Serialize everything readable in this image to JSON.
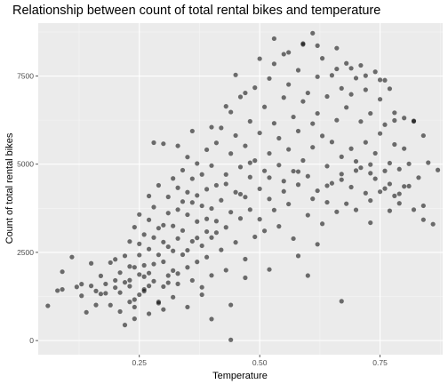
{
  "chart_data": {
    "type": "scatter",
    "title": "Relationship between count of total rental bikes and temperature",
    "xlabel": "Temperature",
    "ylabel": "Count of total rental bikes",
    "xlim": [
      0.04,
      0.88
    ],
    "ylim": [
      -400,
      9000
    ],
    "xticks": [
      0.25,
      0.5,
      0.75
    ],
    "xtick_labels": [
      "0.25",
      "0.50",
      "0.75"
    ],
    "yticks": [
      0,
      2500,
      5000,
      7500
    ],
    "ytick_labels": [
      "0",
      "2500",
      "5000",
      "7500"
    ],
    "grid": true,
    "legend": "none",
    "point_color": "#000000",
    "point_opacity": 0.55,
    "panel_background": "#ebebeb",
    "series": [
      {
        "points": [
          [
            0.06,
            985
          ],
          [
            0.08,
            1416
          ],
          [
            0.09,
            1951
          ],
          [
            0.09,
            1450
          ],
          [
            0.11,
            2368
          ],
          [
            0.12,
            1521
          ],
          [
            0.13,
            1600
          ],
          [
            0.13,
            1270
          ],
          [
            0.14,
            801
          ],
          [
            0.15,
            1550
          ],
          [
            0.15,
            2190
          ],
          [
            0.16,
            1405
          ],
          [
            0.16,
            1008
          ],
          [
            0.17,
            1321
          ],
          [
            0.17,
            1834
          ],
          [
            0.18,
            1341
          ],
          [
            0.18,
            1605
          ],
          [
            0.19,
            2210
          ],
          [
            0.19,
            1005
          ],
          [
            0.2,
            1501
          ],
          [
            0.2,
            1706
          ],
          [
            0.2,
            2302
          ],
          [
            0.21,
            822
          ],
          [
            0.21,
            1927
          ],
          [
            0.21,
            1360
          ],
          [
            0.22,
            2402
          ],
          [
            0.22,
            1650
          ],
          [
            0.22,
            441
          ],
          [
            0.23,
            1096
          ],
          [
            0.23,
            2101
          ],
          [
            0.23,
            2808
          ],
          [
            0.23,
            1540
          ],
          [
            0.24,
            2077
          ],
          [
            0.24,
            1162
          ],
          [
            0.24,
            3214
          ],
          [
            0.24,
            618
          ],
          [
            0.25,
            2424
          ],
          [
            0.25,
            1872
          ],
          [
            0.25,
            3574
          ],
          [
            0.25,
            2741
          ],
          [
            0.26,
            2133
          ],
          [
            0.26,
            1450
          ],
          [
            0.26,
            3005
          ],
          [
            0.26,
            1811
          ],
          [
            0.27,
            2594
          ],
          [
            0.27,
            1913
          ],
          [
            0.27,
            3422
          ],
          [
            0.27,
            4098
          ],
          [
            0.28,
            2169
          ],
          [
            0.28,
            1683
          ],
          [
            0.28,
            3784
          ],
          [
            0.28,
            2920
          ],
          [
            0.29,
            2431
          ],
          [
            0.29,
            3187
          ],
          [
            0.29,
            1096
          ],
          [
            0.29,
            4401
          ],
          [
            0.3,
            2792
          ],
          [
            0.3,
            1530
          ],
          [
            0.3,
            3272
          ],
          [
            0.3,
            2233
          ],
          [
            0.31,
            3614
          ],
          [
            0.31,
            2660
          ],
          [
            0.31,
            4073
          ],
          [
            0.31,
            1842
          ],
          [
            0.32,
            3249
          ],
          [
            0.32,
            2542
          ],
          [
            0.32,
            4596
          ],
          [
            0.32,
            1985
          ],
          [
            0.33,
            3713
          ],
          [
            0.33,
            2894
          ],
          [
            0.33,
            4332
          ],
          [
            0.33,
            1607
          ],
          [
            0.34,
            3940
          ],
          [
            0.34,
            2435
          ],
          [
            0.34,
            4830
          ],
          [
            0.34,
            3120
          ],
          [
            0.35,
            2076
          ],
          [
            0.35,
            4206
          ],
          [
            0.35,
            3567
          ],
          [
            0.35,
            5202
          ],
          [
            0.36,
            2814
          ],
          [
            0.36,
            3915
          ],
          [
            0.36,
            1706
          ],
          [
            0.36,
            4588
          ],
          [
            0.37,
            3374
          ],
          [
            0.37,
            2230
          ],
          [
            0.37,
            5020
          ],
          [
            0.37,
            4115
          ],
          [
            0.38,
            2688
          ],
          [
            0.38,
            3820
          ],
          [
            0.38,
            1510
          ],
          [
            0.38,
            4710
          ],
          [
            0.39,
            3089
          ],
          [
            0.39,
            5410
          ],
          [
            0.39,
            2365
          ],
          [
            0.39,
            4290
          ],
          [
            0.4,
            3744
          ],
          [
            0.4,
            1848
          ],
          [
            0.4,
            4960
          ],
          [
            0.4,
            2920
          ],
          [
            0.41,
            3386
          ],
          [
            0.41,
            5605
          ],
          [
            0.41,
            4402
          ],
          [
            0.42,
            2570
          ],
          [
            0.42,
            3978
          ],
          [
            0.42,
            6030
          ],
          [
            0.43,
            3210
          ],
          [
            0.43,
            4708
          ],
          [
            0.43,
            1995
          ],
          [
            0.44,
            5302
          ],
          [
            0.44,
            3640
          ],
          [
            0.44,
            6478
          ],
          [
            0.45,
            2784
          ],
          [
            0.45,
            4205
          ],
          [
            0.45,
            5814
          ],
          [
            0.46,
            3462
          ],
          [
            0.46,
            4920
          ],
          [
            0.46,
            6908
          ],
          [
            0.47,
            2309
          ],
          [
            0.47,
            4068
          ],
          [
            0.47,
            5520
          ],
          [
            0.48,
            3712
          ],
          [
            0.48,
            6215
          ],
          [
            0.48,
            4634
          ],
          [
            0.49,
            2940
          ],
          [
            0.49,
            5103
          ],
          [
            0.49,
            7170
          ],
          [
            0.5,
            4302
          ],
          [
            0.5,
            3440
          ],
          [
            0.5,
            5886
          ],
          [
            0.51,
            6624
          ],
          [
            0.51,
            4812
          ],
          [
            0.51,
            3110
          ],
          [
            0.52,
            7430
          ],
          [
            0.52,
            5307
          ],
          [
            0.52,
            4015
          ],
          [
            0.53,
            6160
          ],
          [
            0.53,
            3700
          ],
          [
            0.53,
            7846
          ],
          [
            0.54,
            4975
          ],
          [
            0.54,
            5736
          ],
          [
            0.54,
            3238
          ],
          [
            0.55,
            6890
          ],
          [
            0.55,
            4520
          ],
          [
            0.55,
            8120
          ],
          [
            0.56,
            5420
          ],
          [
            0.56,
            3870
          ],
          [
            0.56,
            7260
          ],
          [
            0.57,
            4802
          ],
          [
            0.57,
            6340
          ],
          [
            0.57,
            2890
          ],
          [
            0.58,
            5940
          ],
          [
            0.58,
            7664
          ],
          [
            0.58,
            4420
          ],
          [
            0.59,
            6780
          ],
          [
            0.59,
            5106
          ],
          [
            0.59,
            8395
          ],
          [
            0.6,
            4660
          ],
          [
            0.6,
            7020
          ],
          [
            0.6,
            3555
          ],
          [
            0.61,
            6150
          ],
          [
            0.61,
            8714
          ],
          [
            0.61,
            5480
          ],
          [
            0.62,
            4248
          ],
          [
            0.62,
            7480
          ],
          [
            0.62,
            6440
          ],
          [
            0.63,
            3310
          ],
          [
            0.63,
            5802
          ],
          [
            0.63,
            8002
          ],
          [
            0.64,
            4945
          ],
          [
            0.64,
            6920
          ],
          [
            0.64,
            3920
          ],
          [
            0.65,
            7520
          ],
          [
            0.65,
            5630
          ],
          [
            0.65,
            4460
          ],
          [
            0.66,
            6248
          ],
          [
            0.66,
            8290
          ],
          [
            0.66,
            3650
          ],
          [
            0.67,
            5210
          ],
          [
            0.67,
            7150
          ],
          [
            0.67,
            4720
          ],
          [
            0.68,
            6610
          ],
          [
            0.68,
            3880
          ],
          [
            0.68,
            7860
          ],
          [
            0.69,
            5440
          ],
          [
            0.69,
            4350
          ],
          [
            0.69,
            6980
          ],
          [
            0.7,
            5080
          ],
          [
            0.7,
            7440
          ],
          [
            0.7,
            3705
          ],
          [
            0.71,
            6210
          ],
          [
            0.71,
            4900
          ],
          [
            0.71,
            7802
          ],
          [
            0.72,
            5620
          ],
          [
            0.72,
            4180
          ],
          [
            0.72,
            7110
          ],
          [
            0.73,
            4744
          ],
          [
            0.73,
            6440
          ],
          [
            0.73,
            3970
          ],
          [
            0.74,
            7620
          ],
          [
            0.74,
            5310
          ],
          [
            0.74,
            4588
          ],
          [
            0.75,
            6840
          ],
          [
            0.75,
            4220
          ],
          [
            0.75,
            5870
          ],
          [
            0.76,
            7380
          ],
          [
            0.76,
            4810
          ],
          [
            0.76,
            6120
          ],
          [
            0.77,
            5030
          ],
          [
            0.77,
            4440
          ],
          [
            0.77,
            7140
          ],
          [
            0.78,
            5560
          ],
          [
            0.78,
            4102
          ],
          [
            0.78,
            6460
          ],
          [
            0.79,
            4860
          ],
          [
            0.79,
            3890
          ],
          [
            0.8,
            5442
          ],
          [
            0.8,
            6310
          ],
          [
            0.81,
            4378
          ],
          [
            0.81,
            5010
          ],
          [
            0.82,
            3710
          ],
          [
            0.82,
            6214
          ],
          [
            0.83,
            4620
          ],
          [
            0.84,
            3822
          ],
          [
            0.84,
            3426
          ],
          [
            0.85,
            5044
          ],
          [
            0.86,
            3300
          ],
          [
            0.87,
            4836
          ],
          [
            0.23,
            1710
          ],
          [
            0.26,
            1402
          ],
          [
            0.28,
            5610
          ],
          [
            0.3,
            5580
          ],
          [
            0.33,
            5520
          ],
          [
            0.36,
            5940
          ],
          [
            0.4,
            6050
          ],
          [
            0.43,
            6640
          ],
          [
            0.45,
            7530
          ],
          [
            0.47,
            7020
          ],
          [
            0.5,
            7990
          ],
          [
            0.53,
            8560
          ],
          [
            0.56,
            8170
          ],
          [
            0.59,
            8420
          ],
          [
            0.62,
            8360
          ],
          [
            0.66,
            7700
          ],
          [
            0.69,
            7720
          ],
          [
            0.72,
            7510
          ],
          [
            0.75,
            7390
          ],
          [
            0.78,
            6240
          ],
          [
            0.82,
            6230
          ],
          [
            0.84,
            5810
          ],
          [
            0.4,
            610
          ],
          [
            0.44,
            1010
          ],
          [
            0.47,
            1780
          ],
          [
            0.52,
            2014
          ],
          [
            0.58,
            2400
          ],
          [
            0.6,
            1842
          ],
          [
            0.62,
            2730
          ],
          [
            0.67,
            1115
          ],
          [
            0.73,
            3340
          ],
          [
            0.77,
            3680
          ],
          [
            0.8,
            4370
          ],
          [
            0.44,
            20
          ],
          [
            0.38,
            1300
          ],
          [
            0.35,
            950
          ],
          [
            0.32,
            1230
          ],
          [
            0.3,
            880
          ],
          [
            0.27,
            1550
          ],
          [
            0.25,
            1300
          ],
          [
            0.24,
            950
          ],
          [
            0.27,
            760
          ],
          [
            0.29,
            1060
          ],
          [
            0.31,
            1640
          ],
          [
            0.33,
            1900
          ],
          [
            0.35,
            2560
          ],
          [
            0.37,
            2910
          ],
          [
            0.39,
            3450
          ],
          [
            0.41,
            3060
          ],
          [
            0.43,
            4440
          ],
          [
            0.46,
            4150
          ],
          [
            0.48,
            5040
          ],
          [
            0.52,
            4620
          ],
          [
            0.55,
            4230
          ],
          [
            0.58,
            4790
          ],
          [
            0.61,
            4020
          ],
          [
            0.64,
            4390
          ],
          [
            0.67,
            4560
          ],
          [
            0.7,
            4820
          ],
          [
            0.73,
            4990
          ],
          [
            0.76,
            4310
          ],
          [
            0.79,
            4160
          ]
        ]
      }
    ]
  }
}
